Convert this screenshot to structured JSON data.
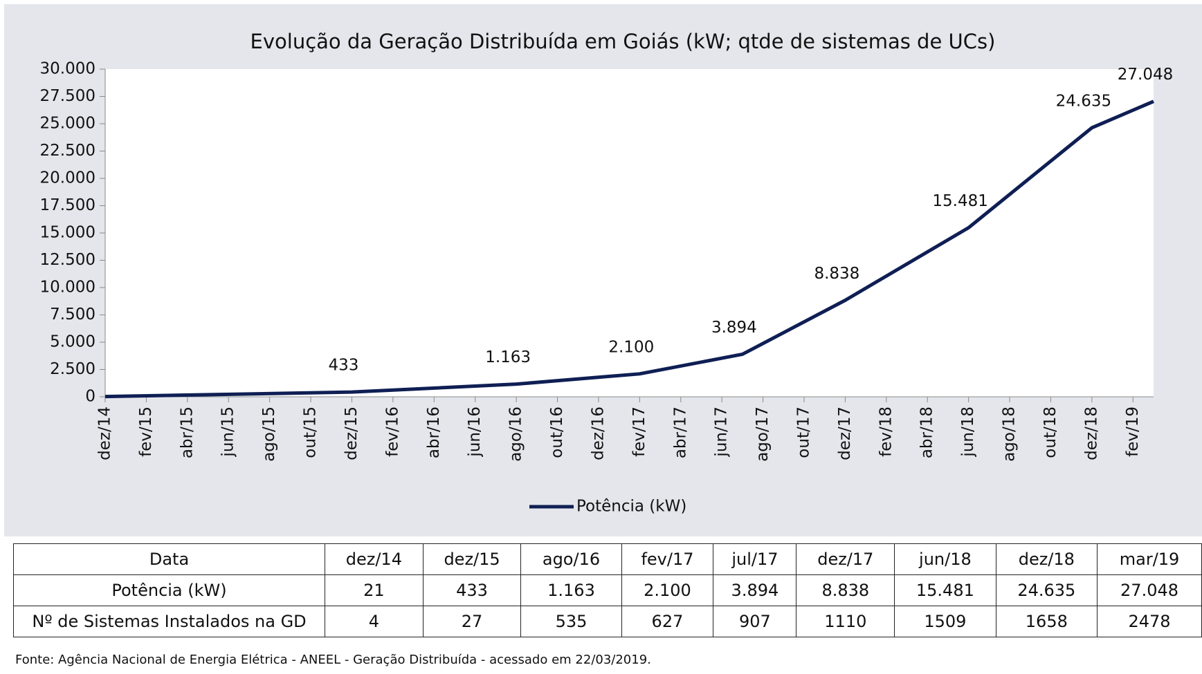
{
  "chart_data": {
    "type": "line",
    "title": "Evolução da Geração Distribuída em Goiás (kW; qtde de sistemas de UCs)",
    "x": [
      "2014-12",
      "2015-12",
      "2016-08",
      "2017-02",
      "2017-07",
      "2017-12",
      "2018-06",
      "2018-12",
      "2019-03"
    ],
    "series": [
      {
        "name": "Potência (kW)",
        "color": "#0f1f54",
        "values": [
          21,
          433,
          1163,
          2100,
          3894,
          8838,
          15481,
          24635,
          27048
        ],
        "value_labels": [
          null,
          "433",
          "1.163",
          "2.100",
          "3.894",
          "8.838",
          "15.481",
          "24.635",
          "27.048"
        ]
      }
    ],
    "xlim": [
      "2014-12",
      "2019-03"
    ],
    "xticks": [
      {
        "value": "2014-12",
        "label": "dez/14"
      },
      {
        "value": "2015-02",
        "label": "fev/15"
      },
      {
        "value": "2015-04",
        "label": "abr/15"
      },
      {
        "value": "2015-06",
        "label": "jun/15"
      },
      {
        "value": "2015-08",
        "label": "ago/15"
      },
      {
        "value": "2015-10",
        "label": "out/15"
      },
      {
        "value": "2015-12",
        "label": "dez/15"
      },
      {
        "value": "2016-02",
        "label": "fev/16"
      },
      {
        "value": "2016-04",
        "label": "abr/16"
      },
      {
        "value": "2016-06",
        "label": "jun/16"
      },
      {
        "value": "2016-08",
        "label": "ago/16"
      },
      {
        "value": "2016-10",
        "label": "out/16"
      },
      {
        "value": "2016-12",
        "label": "dez/16"
      },
      {
        "value": "2017-02",
        "label": "fev/17"
      },
      {
        "value": "2017-04",
        "label": "abr/17"
      },
      {
        "value": "2017-06",
        "label": "jun/17"
      },
      {
        "value": "2017-08",
        "label": "ago/17"
      },
      {
        "value": "2017-10",
        "label": "out/17"
      },
      {
        "value": "2017-12",
        "label": "dez/17"
      },
      {
        "value": "2018-02",
        "label": "fev/18"
      },
      {
        "value": "2018-04",
        "label": "abr/18"
      },
      {
        "value": "2018-06",
        "label": "jun/18"
      },
      {
        "value": "2018-08",
        "label": "ago/18"
      },
      {
        "value": "2018-10",
        "label": "out/18"
      },
      {
        "value": "2018-12",
        "label": "dez/18"
      },
      {
        "value": "2019-02",
        "label": "fev/19"
      }
    ],
    "ylim": [
      0,
      30000
    ],
    "yticks": [
      0,
      {
        "value": 2500,
        "label": "2.500"
      },
      {
        "value": 5000,
        "label": "5.000"
      },
      {
        "value": 7500,
        "label": "7.500"
      },
      {
        "value": 10000,
        "label": "10.000"
      },
      {
        "value": 12500,
        "label": "12.500"
      },
      {
        "value": 15000,
        "label": "15.000"
      },
      {
        "value": 17500,
        "label": "17.500"
      },
      {
        "value": 20000,
        "label": "20.000"
      },
      {
        "value": 22500,
        "label": "22.500"
      },
      {
        "value": 25000,
        "label": "25.000"
      },
      {
        "value": 27500,
        "label": "27.500"
      },
      {
        "value": 30000,
        "label": "30.000"
      }
    ],
    "grid": false,
    "legend": "bottom"
  },
  "table": {
    "header": [
      "Data",
      "dez/14",
      "dez/15",
      "ago/16",
      "fev/17",
      "jul/17",
      "dez/17",
      "jun/18",
      "dez/18",
      "mar/19"
    ],
    "rows": [
      [
        "Potência (kW)",
        "21",
        "433",
        "1.163",
        "2.100",
        "3.894",
        "8.838",
        "15.481",
        "24.635",
        "27.048"
      ],
      [
        "Nº de Sistemas Instalados na GD",
        "4",
        "27",
        "535",
        "627",
        "907",
        "1110",
        "1509",
        "1658",
        "2478"
      ]
    ]
  },
  "source": "Fonte: Agência Nacional de Energia Elétrica - ANEEL - Geração Distribuída - acessado em 22/03/2019."
}
